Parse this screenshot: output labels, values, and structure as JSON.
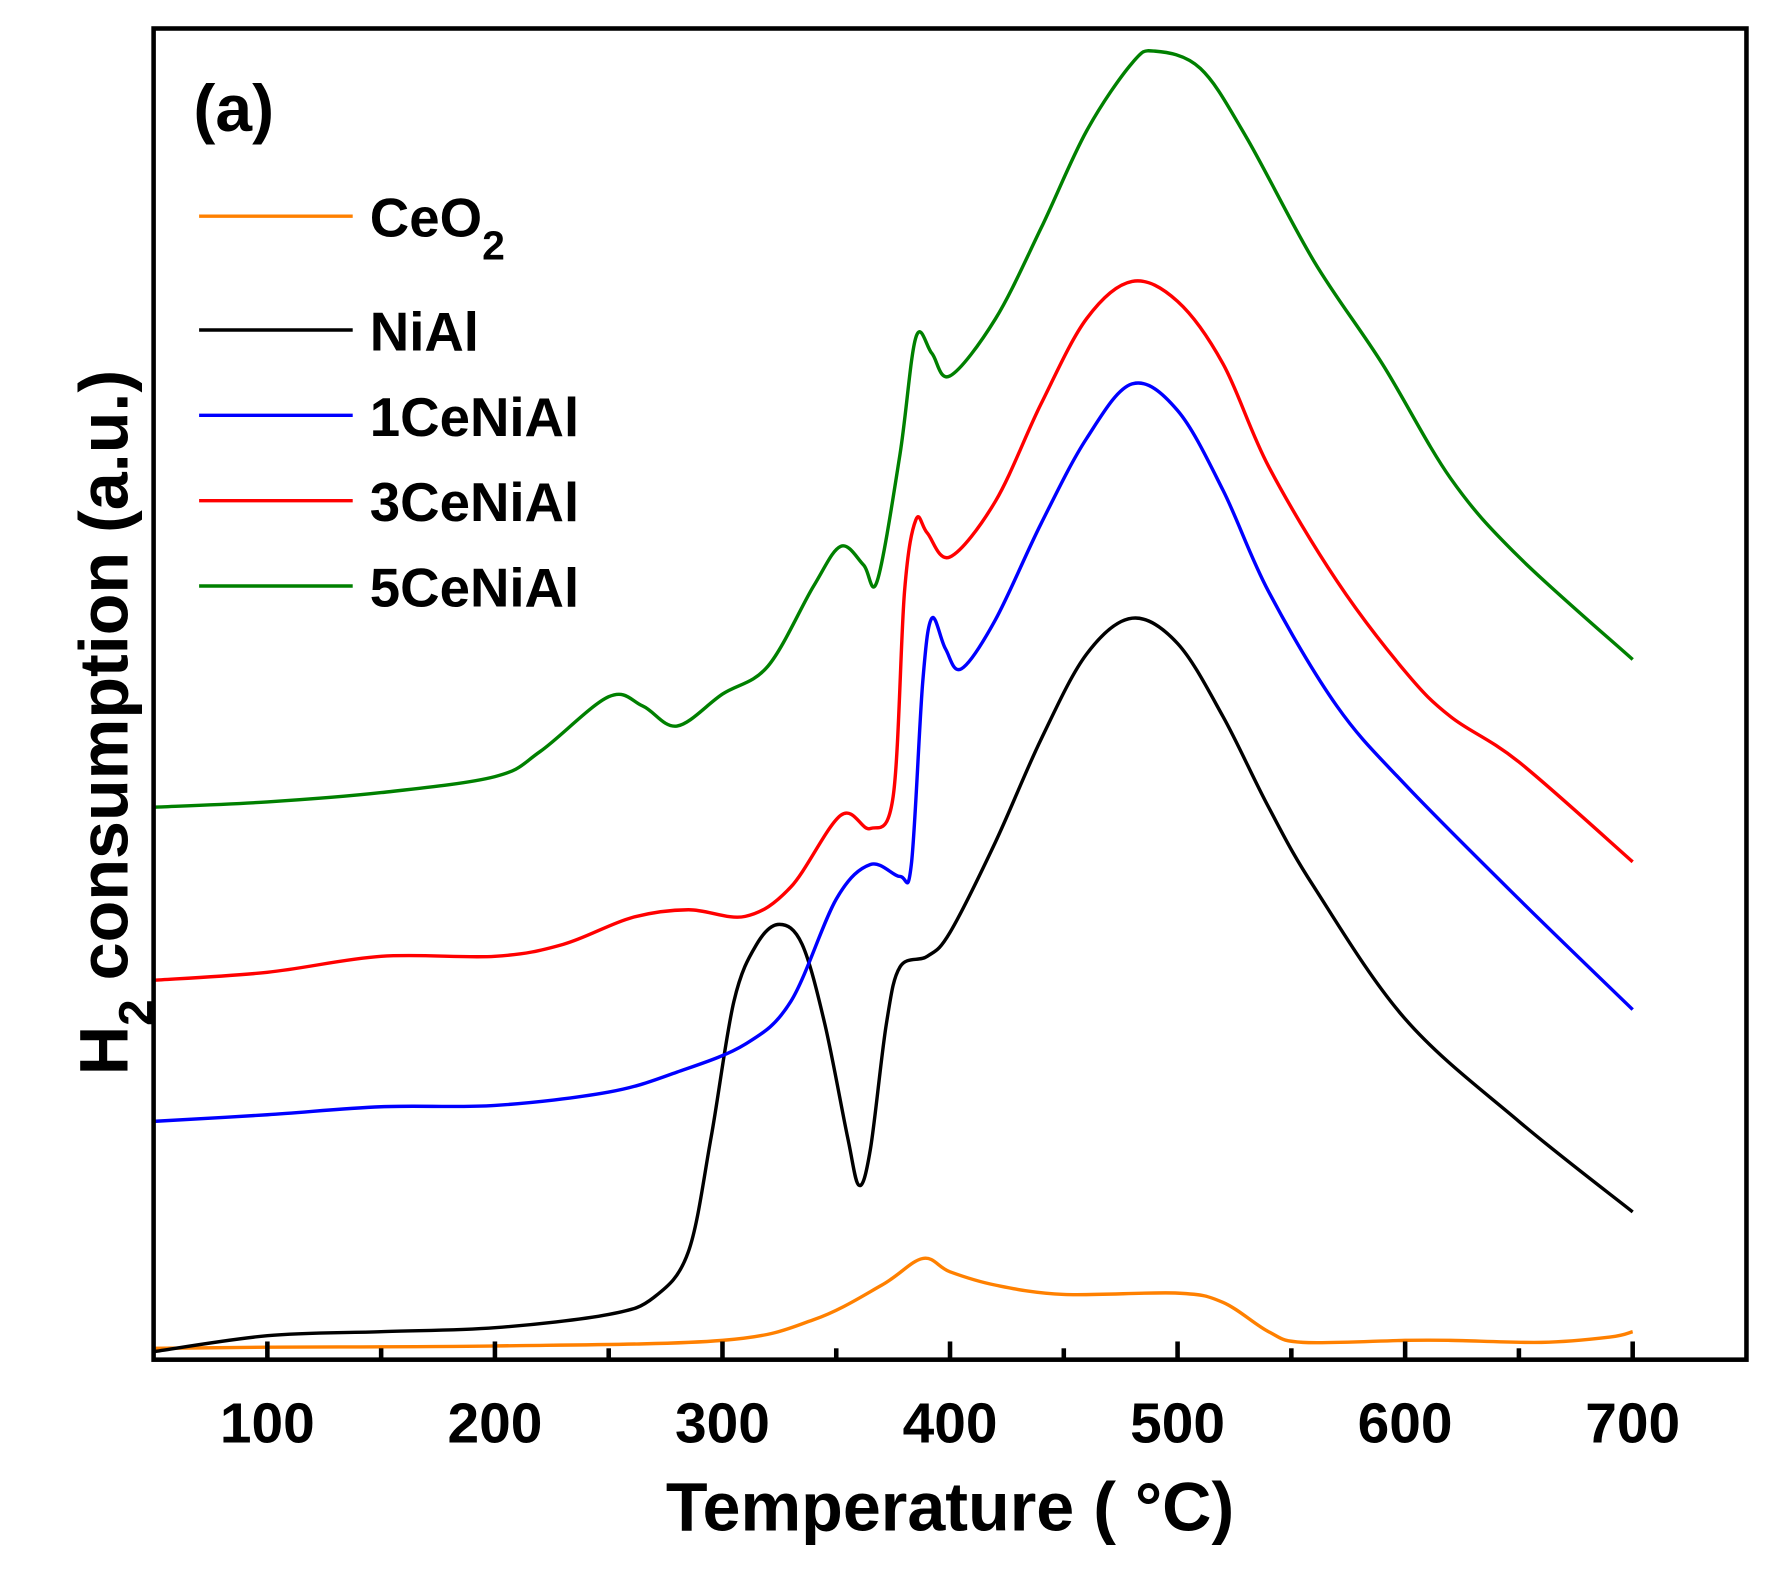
{
  "chart_data": {
    "type": "line",
    "panel_label": "(a)",
    "xlabel": "Temperature ( °C)",
    "ylabel": "H2 consumption (a.u.)",
    "ylabel_parts": {
      "pre": "H",
      "sub": "2",
      "post": " consumption (a.u.)"
    },
    "xlim": [
      50,
      750
    ],
    "ylim": [
      0,
      100
    ],
    "xticks": [
      100,
      200,
      300,
      400,
      500,
      600,
      700
    ],
    "xtick_labels": [
      "100",
      "200",
      "300",
      "400",
      "500",
      "600",
      "700"
    ],
    "minor_xticks": [
      150,
      250,
      350,
      450,
      550,
      650
    ],
    "grid": false,
    "legend_position": "top-left",
    "series": [
      {
        "name": "CeO2",
        "label_main": "CeO",
        "label_sub": "2",
        "color": "#ff8000",
        "x": [
          50,
          100,
          200,
          300,
          340,
          370,
          388,
          400,
          420,
          450,
          500,
          520,
          540,
          555,
          600,
          620,
          660,
          690,
          700
        ],
        "y": [
          0.85,
          0.94,
          1.03,
          1.45,
          3.0,
          5.6,
          7.6,
          6.6,
          5.6,
          4.9,
          5.0,
          4.3,
          2.1,
          1.3,
          1.45,
          1.45,
          1.3,
          1.7,
          2.1
        ]
      },
      {
        "name": "NiAl",
        "color": "#000000",
        "x": [
          50,
          100,
          150,
          200,
          250,
          270,
          285,
          295,
          305,
          315,
          325,
          335,
          345,
          355,
          360,
          365,
          372,
          378,
          390,
          400,
          420,
          440,
          460,
          480,
          500,
          520,
          540,
          560,
          600,
          650,
          700
        ],
        "y": [
          0.6,
          1.8,
          2.1,
          2.4,
          3.4,
          4.7,
          8.1,
          16.7,
          26.9,
          31.2,
          32.7,
          31.2,
          25.2,
          16.7,
          13.1,
          15.8,
          25.2,
          29.5,
          30.3,
          32.1,
          38.9,
          46.6,
          53.0,
          55.7,
          53.8,
          48.3,
          41.5,
          35.5,
          25.6,
          17.9,
          11.1
        ]
      },
      {
        "name": "1CeNiAl",
        "color": "#0000ff",
        "x": [
          50,
          100,
          150,
          200,
          250,
          280,
          310,
          330,
          350,
          365,
          378,
          383,
          388,
          392,
          398,
          405,
          420,
          440,
          460,
          480,
          500,
          520,
          540,
          570,
          600,
          650,
          700
        ],
        "y": [
          17.9,
          18.4,
          19.0,
          19.1,
          20.1,
          21.6,
          23.7,
          26.9,
          34.6,
          37.2,
          36.3,
          37.2,
          50.9,
          55.7,
          53.4,
          51.9,
          55.6,
          62.8,
          69.2,
          73.3,
          71.3,
          65.3,
          57.7,
          49.1,
          43.2,
          34.6,
          26.3
        ]
      },
      {
        "name": "3CeNiAl",
        "color": "#ff0000",
        "x": [
          50,
          100,
          150,
          200,
          230,
          260,
          285,
          310,
          330,
          352,
          365,
          375,
          380,
          385,
          390,
          400,
          420,
          440,
          460,
          480,
          500,
          520,
          540,
          570,
          600,
          620,
          650,
          700
        ],
        "y": [
          28.5,
          29.1,
          30.3,
          30.3,
          31.2,
          33.2,
          33.8,
          33.3,
          35.5,
          40.9,
          39.9,
          42.3,
          57.7,
          63.1,
          62.1,
          60.3,
          64.5,
          71.8,
          78.2,
          81.0,
          79.5,
          74.8,
          67.1,
          58.5,
          51.7,
          48.3,
          44.9,
          37.4
        ]
      },
      {
        "name": "5CeNiAl",
        "color": "#008000",
        "x": [
          50,
          100,
          150,
          200,
          220,
          250,
          265,
          280,
          300,
          320,
          340,
          352,
          362,
          368,
          378,
          385,
          392,
          400,
          420,
          440,
          460,
          480,
          490,
          510,
          530,
          560,
          590,
          620,
          650,
          700
        ],
        "y": [
          41.5,
          41.9,
          42.6,
          43.8,
          45.7,
          49.8,
          49.1,
          47.6,
          50.0,
          52.1,
          58.1,
          61.1,
          59.7,
          58.5,
          68.0,
          76.8,
          75.6,
          73.9,
          78.2,
          85.0,
          92.3,
          97.4,
          98.3,
          97.0,
          91.9,
          82.5,
          74.8,
          66.2,
          60.3,
          52.6
        ]
      }
    ]
  }
}
